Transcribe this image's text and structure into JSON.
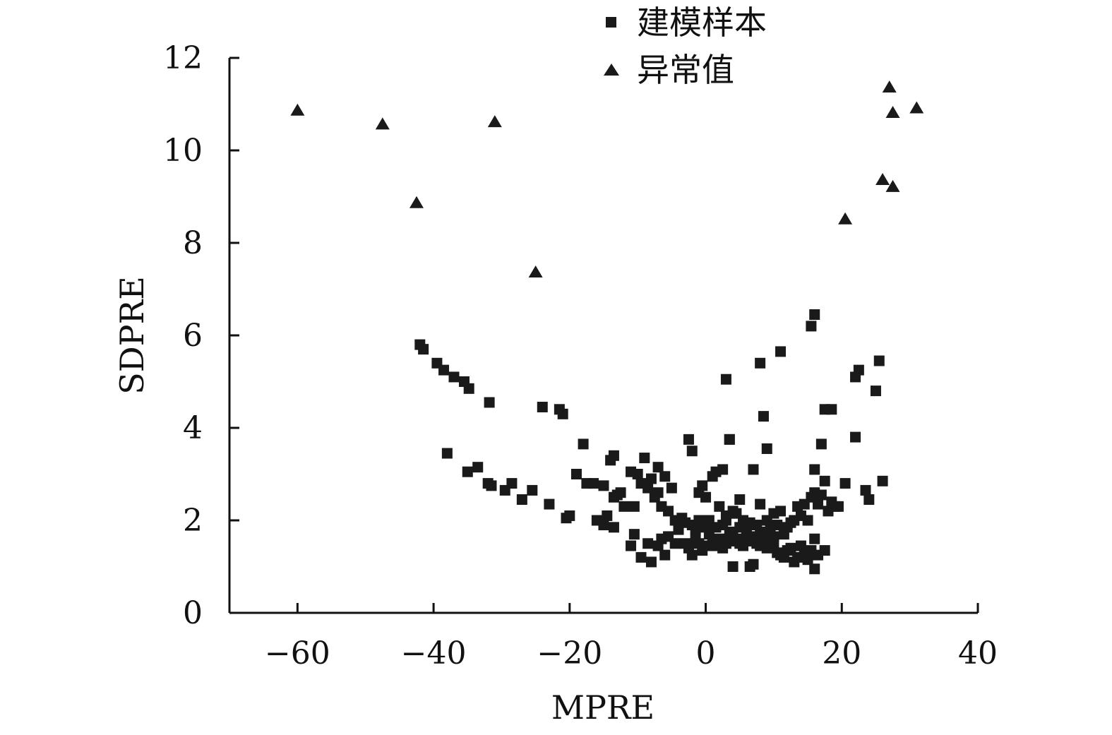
{
  "chart_data": {
    "type": "scatter",
    "title": "",
    "xlabel": "MPRE",
    "ylabel": "SDPRE",
    "xlim": [
      -70,
      40
    ],
    "ylim": [
      0,
      12
    ],
    "xticks": [
      -60,
      -40,
      -20,
      0,
      20,
      40
    ],
    "xtick_labels": [
      "−60",
      "−40",
      "−20",
      "0",
      "20",
      "40"
    ],
    "yticks": [
      0,
      2,
      4,
      6,
      8,
      10,
      12
    ],
    "ytick_labels": [
      "0",
      "2",
      "4",
      "6",
      "8",
      "10",
      "12"
    ],
    "grid": false,
    "legend": "top-center",
    "series": [
      {
        "name": "建模样本",
        "marker": "square",
        "color": "#1a1a1a",
        "points": [
          [
            -42,
            5.8
          ],
          [
            -41.5,
            5.7
          ],
          [
            -39.5,
            5.4
          ],
          [
            -38.5,
            5.25
          ],
          [
            -37,
            5.1
          ],
          [
            -35.5,
            5.0
          ],
          [
            -34.8,
            4.85
          ],
          [
            -31.8,
            4.55
          ],
          [
            -24,
            4.45
          ],
          [
            -21.5,
            4.4
          ],
          [
            -21,
            4.3
          ],
          [
            -18,
            3.65
          ],
          [
            -38,
            3.45
          ],
          [
            -35,
            3.05
          ],
          [
            -33.5,
            3.15
          ],
          [
            -32,
            2.8
          ],
          [
            -31.5,
            2.75
          ],
          [
            -29.5,
            2.65
          ],
          [
            -28.5,
            2.8
          ],
          [
            -27,
            2.45
          ],
          [
            -25.5,
            2.65
          ],
          [
            -23,
            2.35
          ],
          [
            -20.5,
            2.05
          ],
          [
            -20,
            2.1
          ],
          [
            -19,
            3.0
          ],
          [
            -17.5,
            2.8
          ],
          [
            -16.5,
            2.8
          ],
          [
            -16,
            2.0
          ],
          [
            -15,
            2.75
          ],
          [
            -14.5,
            2.1
          ],
          [
            -13.5,
            2.5
          ],
          [
            -13,
            2.55
          ],
          [
            -14,
            3.3
          ],
          [
            -13.5,
            3.4
          ],
          [
            -13.5,
            1.85
          ],
          [
            -12.5,
            2.6
          ],
          [
            -12,
            2.3
          ],
          [
            -11,
            3.05
          ],
          [
            -10.5,
            2.3
          ],
          [
            -10,
            3.0
          ],
          [
            -9.5,
            2.8
          ],
          [
            -9,
            3.35
          ],
          [
            -8.5,
            2.7
          ],
          [
            -8,
            2.9
          ],
          [
            -7.5,
            2.5
          ],
          [
            -7,
            3.15
          ],
          [
            -7,
            2.6
          ],
          [
            -6.5,
            2.3
          ],
          [
            -6,
            2.95
          ],
          [
            -5.5,
            2.2
          ],
          [
            -5,
            2.7
          ],
          [
            -4.5,
            2.0
          ],
          [
            -4,
            1.8
          ],
          [
            -3.5,
            2.05
          ],
          [
            -3,
            1.95
          ],
          [
            -2.5,
            3.75
          ],
          [
            -2,
            3.5
          ],
          [
            -2,
            1.9
          ],
          [
            -1.5,
            1.8
          ],
          [
            -1,
            2.6
          ],
          [
            -0.5,
            2.75
          ],
          [
            0,
            1.85
          ],
          [
            0,
            2.5
          ],
          [
            0.5,
            1.7
          ],
          [
            1,
            2.95
          ],
          [
            1.5,
            3.05
          ],
          [
            2,
            2.3
          ],
          [
            2.5,
            3.1
          ],
          [
            3,
            2.1
          ],
          [
            3,
            2.0
          ],
          [
            3.5,
            3.75
          ],
          [
            3.5,
            1.7
          ],
          [
            4,
            2.2
          ],
          [
            4.5,
            2.15
          ],
          [
            5,
            2.45
          ],
          [
            5.5,
            2.0
          ],
          [
            6,
            1.8
          ],
          [
            6.5,
            1.95
          ],
          [
            7,
            3.1
          ],
          [
            7.5,
            1.9
          ],
          [
            8,
            2.35
          ],
          [
            8.5,
            1.7
          ],
          [
            9,
            2.0
          ],
          [
            9.5,
            1.8
          ],
          [
            10,
            2.15
          ],
          [
            10.5,
            1.9
          ],
          [
            11,
            2.2
          ],
          [
            11.5,
            1.7
          ],
          [
            12,
            1.85
          ],
          [
            12.5,
            1.95
          ],
          [
            13,
            2.0
          ],
          [
            13.5,
            2.3
          ],
          [
            14,
            2.1
          ],
          [
            14.5,
            2.35
          ],
          [
            15,
            2.0
          ],
          [
            15.5,
            2.5
          ],
          [
            16,
            2.6
          ],
          [
            16.5,
            2.35
          ],
          [
            17,
            2.55
          ],
          [
            17.5,
            2.85
          ],
          [
            18,
            2.2
          ],
          [
            18.5,
            2.4
          ],
          [
            19,
            2.3
          ],
          [
            19.5,
            2.3
          ],
          [
            20.5,
            2.8
          ],
          [
            22,
            3.8
          ],
          [
            23.5,
            2.65
          ],
          [
            24,
            2.45
          ],
          [
            26,
            2.85
          ],
          [
            25,
            4.8
          ],
          [
            25.5,
            5.45
          ],
          [
            22,
            5.1
          ],
          [
            22.5,
            5.25
          ],
          [
            17.5,
            4.4
          ],
          [
            18.5,
            4.4
          ],
          [
            17,
            3.65
          ],
          [
            16,
            3.1
          ],
          [
            16,
            6.45
          ],
          [
            15.5,
            6.2
          ],
          [
            11,
            5.65
          ],
          [
            8,
            5.4
          ],
          [
            3,
            5.05
          ],
          [
            3.5,
            3.75
          ],
          [
            8.5,
            4.25
          ],
          [
            9,
            3.55
          ],
          [
            -15,
            1.9
          ],
          [
            -11,
            1.45
          ],
          [
            -10.5,
            1.7
          ],
          [
            -9.5,
            1.2
          ],
          [
            -8.5,
            1.5
          ],
          [
            -8,
            1.1
          ],
          [
            -7,
            1.45
          ],
          [
            -6.5,
            1.6
          ],
          [
            -6,
            1.25
          ],
          [
            -5.5,
            1.65
          ],
          [
            -4.5,
            1.5
          ],
          [
            -3,
            1.5
          ],
          [
            -2.5,
            1.4
          ],
          [
            -2,
            1.25
          ],
          [
            -1.5,
            1.6
          ],
          [
            -1,
            1.5
          ],
          [
            -0.5,
            1.35
          ],
          [
            0.5,
            1.45
          ],
          [
            1,
            1.55
          ],
          [
            1.5,
            1.45
          ],
          [
            2,
            1.6
          ],
          [
            2.5,
            1.4
          ],
          [
            3,
            1.5
          ],
          [
            3.5,
            1.55
          ],
          [
            4,
            1.0
          ],
          [
            4.5,
            1.6
          ],
          [
            5,
            1.5
          ],
          [
            5.5,
            1.45
          ],
          [
            6,
            1.55
          ],
          [
            6.5,
            1.0
          ],
          [
            7,
            1.05
          ],
          [
            7.5,
            1.5
          ],
          [
            8,
            1.45
          ],
          [
            8.5,
            1.55
          ],
          [
            9,
            1.4
          ],
          [
            9.5,
            1.6
          ],
          [
            10,
            1.5
          ],
          [
            10.5,
            1.3
          ],
          [
            11,
            1.25
          ],
          [
            11.5,
            1.2
          ],
          [
            12,
            1.35
          ],
          [
            12.5,
            1.4
          ],
          [
            13,
            1.1
          ],
          [
            13.5,
            1.2
          ],
          [
            14,
            1.45
          ],
          [
            14.5,
            1.3
          ],
          [
            15,
            1.15
          ],
          [
            15.5,
            1.35
          ],
          [
            16,
            0.95
          ],
          [
            16,
            1.6
          ],
          [
            16.5,
            1.25
          ],
          [
            17.5,
            1.35
          ],
          [
            -1,
            2.0
          ],
          [
            -0.5,
            1.9
          ],
          [
            0.5,
            2.0
          ],
          [
            1.5,
            1.85
          ],
          [
            2.5,
            1.9
          ],
          [
            4,
            1.75
          ],
          [
            5,
            1.85
          ],
          [
            6,
            1.7
          ],
          [
            7,
            1.65
          ],
          [
            8,
            1.75
          ],
          [
            9,
            1.6
          ],
          [
            10,
            1.65
          ]
        ]
      },
      {
        "name": "异常值",
        "marker": "triangle",
        "color": "#1a1a1a",
        "points": [
          [
            -60,
            10.85
          ],
          [
            -47.5,
            10.55
          ],
          [
            -31,
            10.6
          ],
          [
            -42.5,
            8.85
          ],
          [
            -25,
            7.35
          ],
          [
            20.5,
            8.5
          ],
          [
            26,
            9.35
          ],
          [
            27.5,
            9.2
          ],
          [
            27,
            11.35
          ],
          [
            27.5,
            10.8
          ],
          [
            31,
            10.9
          ]
        ]
      }
    ]
  }
}
